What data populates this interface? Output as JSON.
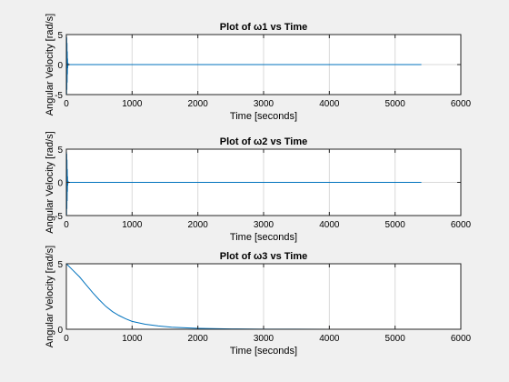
{
  "figure": {
    "background": "#f0f0f0",
    "axes_background": "#ffffff",
    "line_color": "#0072bd",
    "grid_color": "#d9d9d9"
  },
  "chart_data": [
    {
      "type": "line",
      "title": "Plot of ω1 vs Time",
      "xlabel": "Time [seconds]",
      "ylabel": "Angular Velocity [rad/s]",
      "xlim": [
        0,
        6000
      ],
      "ylim": [
        -5,
        5
      ],
      "xticks": [
        0,
        1000,
        2000,
        3000,
        4000,
        5000,
        6000
      ],
      "yticks": [
        -5,
        0,
        5
      ],
      "grid": true,
      "series": [
        {
          "x": [
            0,
            2,
            4,
            6,
            8,
            10,
            12,
            14,
            16,
            18,
            20,
            24,
            28,
            32,
            36,
            40,
            50,
            60,
            80,
            100,
            200,
            400,
            1000,
            2000,
            3000,
            4000,
            5000,
            5400
          ],
          "y": [
            0,
            4.8,
            -5.0,
            4.5,
            -4.2,
            3.6,
            -3.0,
            2.2,
            -1.6,
            1.0,
            -0.6,
            0.3,
            -0.15,
            0.05,
            0,
            0,
            0,
            0,
            0,
            0,
            0,
            0,
            0,
            0,
            0,
            0,
            0,
            0
          ]
        }
      ]
    },
    {
      "type": "line",
      "title": "Plot of ω2 vs Time",
      "xlabel": "Time [seconds]",
      "ylabel": "Angular Velocity [rad/s]",
      "xlim": [
        0,
        6000
      ],
      "ylim": [
        -5,
        5
      ],
      "xticks": [
        0,
        1000,
        2000,
        3000,
        4000,
        5000,
        6000
      ],
      "yticks": [
        -5,
        0,
        5
      ],
      "grid": true,
      "series": [
        {
          "x": [
            0,
            2,
            4,
            6,
            8,
            10,
            12,
            14,
            16,
            18,
            20,
            24,
            28,
            32,
            36,
            40,
            50,
            60,
            80,
            100,
            200,
            400,
            1000,
            2000,
            3000,
            4000,
            5000,
            5400
          ],
          "y": [
            0,
            4.6,
            -4.9,
            4.3,
            -4.0,
            3.4,
            -2.8,
            2.0,
            -1.4,
            0.9,
            -0.5,
            0.25,
            -0.1,
            0.04,
            0,
            0,
            0,
            0,
            0,
            0,
            0,
            0,
            0,
            0,
            0,
            0,
            0,
            0
          ]
        }
      ]
    },
    {
      "type": "line",
      "title": "Plot of ω3 vs Time",
      "xlabel": "Time [seconds]",
      "ylabel": "Angular Velocity [rad/s]",
      "xlim": [
        0,
        6000
      ],
      "ylim": [
        0,
        5
      ],
      "xticks": [
        0,
        1000,
        2000,
        3000,
        4000,
        5000,
        6000
      ],
      "yticks": [
        0,
        5
      ],
      "grid": true,
      "series": [
        {
          "x": [
            0,
            100,
            200,
            300,
            400,
            500,
            600,
            700,
            800,
            900,
            1000,
            1200,
            1400,
            1600,
            1800,
            2000,
            2200,
            2400,
            2600,
            2800,
            3000,
            3500,
            4000,
            4500,
            5000,
            5400
          ],
          "y": [
            5.0,
            4.5,
            4.0,
            3.4,
            2.8,
            2.25,
            1.75,
            1.35,
            1.05,
            0.8,
            0.6,
            0.38,
            0.25,
            0.16,
            0.11,
            0.07,
            0.05,
            0.035,
            0.025,
            0.018,
            0.012,
            0.006,
            0.003,
            0.002,
            0.001,
            0.0
          ]
        }
      ]
    }
  ]
}
